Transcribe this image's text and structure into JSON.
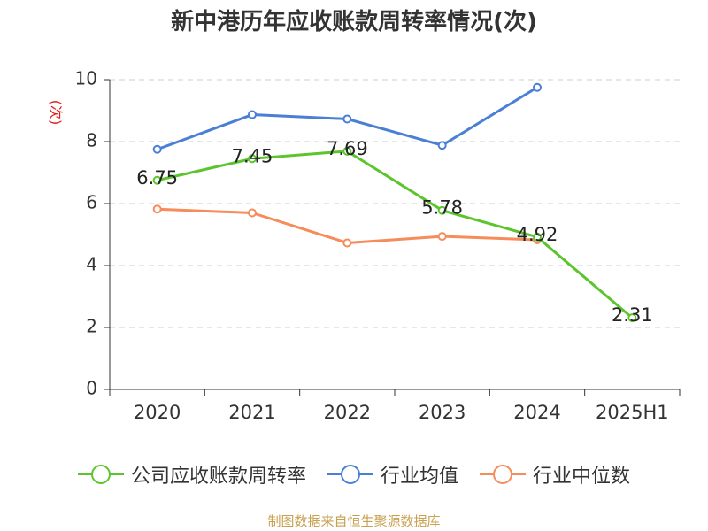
{
  "chart_data": {
    "type": "line",
    "title": "新中港历年应收账款周转率情况(次)",
    "ylabel": "(次)",
    "xlabel": "",
    "categories": [
      "2020",
      "2021",
      "2022",
      "2023",
      "2024",
      "2025H1"
    ],
    "ylim": [
      0,
      10
    ],
    "yticks": [
      "0",
      "2",
      "4",
      "6",
      "8",
      "10"
    ],
    "grid": true,
    "legend_position": "bottom",
    "series": [
      {
        "name": "公司应收账款周转率",
        "color": "#5cc52e",
        "values": [
          6.75,
          7.45,
          7.69,
          5.78,
          4.92,
          2.31
        ],
        "labels": [
          "6.75",
          "7.45",
          "7.69",
          "5.78",
          "4.92",
          "2.31"
        ]
      },
      {
        "name": "行业均值",
        "color": "#4a7fd6",
        "values": [
          7.75,
          8.87,
          8.73,
          7.88,
          9.75,
          null
        ]
      },
      {
        "name": "行业中位数",
        "color": "#f58c5a",
        "values": [
          5.82,
          5.7,
          4.73,
          4.94,
          4.83,
          null
        ]
      }
    ]
  },
  "colors": {
    "ylabel": "#e02020",
    "source": "#c8a050",
    "grid": "#cccccc",
    "axis": "#333333"
  },
  "source": "制图数据来自恒生聚源数据库"
}
